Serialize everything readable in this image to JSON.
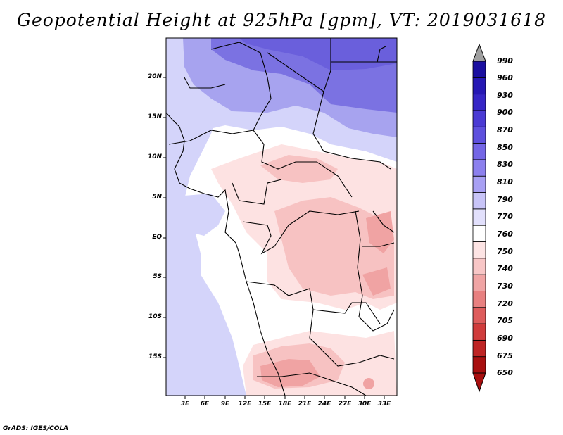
{
  "title": "Geopotential Height at 925hPa [gpm], VT: 2019031618",
  "credit": "GrADS: IGES/COLA",
  "map": {
    "lat_labels": [
      "20N",
      "15N",
      "10N",
      "5N",
      "EQ",
      "5S",
      "10S",
      "15S"
    ],
    "lon_labels": [
      "3E",
      "6E",
      "9E",
      "12E",
      "15E",
      "18E",
      "21E",
      "24E",
      "27E",
      "30E",
      "33E"
    ]
  },
  "colorbar": {
    "levels": [
      "990",
      "960",
      "930",
      "900",
      "870",
      "850",
      "830",
      "810",
      "790",
      "770",
      "760",
      "750",
      "740",
      "730",
      "720",
      "705",
      "690",
      "675",
      "650"
    ],
    "colors": [
      "#1a0fa0",
      "#2618b4",
      "#3626c6",
      "#4a3ad4",
      "#5e50de",
      "#7466e6",
      "#8c80ee",
      "#a8a0f4",
      "#c8c4f8",
      "#e2e0fc",
      "#ffffff",
      "#fde4e4",
      "#f8c6c6",
      "#f0a4a4",
      "#e88080",
      "#de5c5c",
      "#d03c3c",
      "#be2424",
      "#a80f0f"
    ],
    "over_color": "#a0a0a0",
    "under_color": "#a80f0f"
  },
  "colors": {
    "land_white": "#ffffff",
    "ocean_light": "#d4d4fa",
    "blue_mid": "#a7a3ef",
    "blue_dark": "#7b72e2",
    "blue_darkest": "#6a5fdc",
    "pink_light": "#fde2e2",
    "pink_mid": "#f7c2c2",
    "pink_dark": "#f0a3a3"
  }
}
